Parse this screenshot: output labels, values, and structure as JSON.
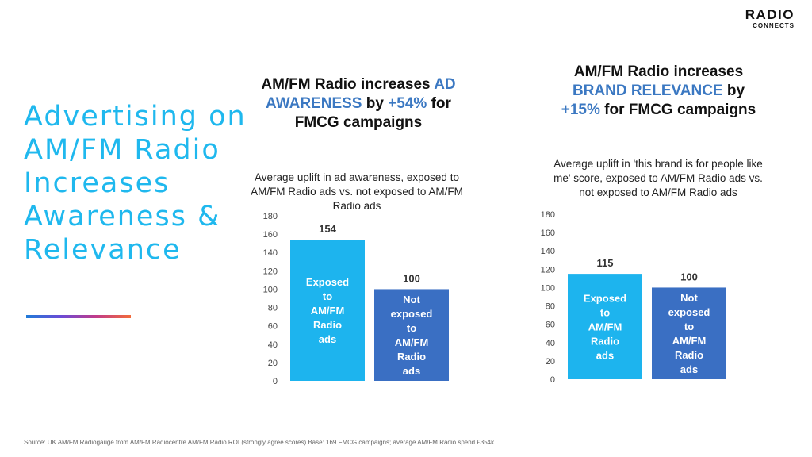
{
  "logo": {
    "main": "RADIO",
    "sub": "CONNECTS"
  },
  "headline": "Advertising on AM/FM Radio Increases Awareness & Relevance",
  "charts": [
    {
      "title_parts": [
        {
          "text": "AM/FM Radio increases ",
          "accent": false
        },
        {
          "text": "AD AWARENESS",
          "accent": true
        },
        {
          "text": " by ",
          "accent": false
        },
        {
          "text": "+54%",
          "accent": true
        },
        {
          "text": " for FMCG campaigns",
          "accent": false
        }
      ],
      "subtitle": "Average uplift in ad awareness, exposed to AM/FM Radio ads vs. not exposed to AM/FM Radio ads"
    },
    {
      "title_parts": [
        {
          "text": "AM/FM Radio increases ",
          "accent": false
        },
        {
          "text": "BRAND RELEVANCE",
          "accent": true
        },
        {
          "text": " by ",
          "accent": false
        },
        {
          "text": "+15%",
          "accent": true
        },
        {
          "text": " for FMCG campaigns",
          "accent": false
        }
      ],
      "subtitle": "Average uplift in 'this brand is for people like me' score, exposed to AM/FM Radio ads vs. not exposed to AM/FM Radio ads"
    }
  ],
  "chart_data": [
    {
      "type": "bar",
      "title": "AM/FM Radio increases AD AWARENESS by +54% for FMCG campaigns",
      "categories": [
        "Exposed to AM/FM Radio ads",
        "Not exposed to AM/FM Radio ads"
      ],
      "bar_labels": [
        [
          "Exposed",
          "to",
          "AM/FM",
          "Radio",
          "ads"
        ],
        [
          "Not",
          "exposed",
          "to",
          "AM/FM",
          "Radio",
          "ads"
        ]
      ],
      "values": [
        154,
        100
      ],
      "colors": [
        "#1db4ee",
        "#3a6fc3"
      ],
      "ylim": [
        0,
        180
      ],
      "yticks": [
        0,
        20,
        40,
        60,
        80,
        100,
        120,
        140,
        160,
        180
      ],
      "grid": false
    },
    {
      "type": "bar",
      "title": "AM/FM Radio increases BRAND RELEVANCE by +15% for FMCG campaigns",
      "categories": [
        "Exposed to AM/FM Radio ads",
        "Not exposed to AM/FM Radio ads"
      ],
      "bar_labels": [
        [
          "Exposed",
          "to",
          "AM/FM",
          "Radio",
          "ads"
        ],
        [
          "Not",
          "exposed",
          "to",
          "AM/FM",
          "Radio",
          "ads"
        ]
      ],
      "values": [
        115,
        100
      ],
      "colors": [
        "#1db4ee",
        "#3a6fc3"
      ],
      "ylim": [
        0,
        180
      ],
      "yticks": [
        0,
        20,
        40,
        60,
        80,
        100,
        120,
        140,
        160,
        180
      ],
      "grid": false
    }
  ],
  "source": "Source: UK AM/FM Radiogauge from AM/FM Radiocentre  AM/FM Radio ROI  (strongly agree scores) Base: 169 FMCG campaigns; average AM/FM Radio spend £354k."
}
